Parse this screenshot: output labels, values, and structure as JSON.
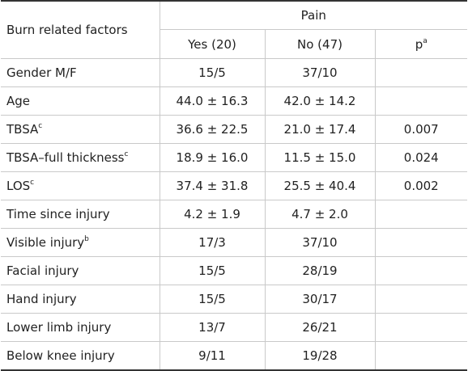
{
  "header": {
    "factor_label": "Burn related factors",
    "group_label": "Pain",
    "col_yes": "Yes (20)",
    "col_no": "No (47)",
    "col_p": "p",
    "col_p_sup": "a"
  },
  "rows": [
    {
      "label": "Gender M/F",
      "sup": "",
      "yes": "15/5",
      "no": "37/10",
      "p": ""
    },
    {
      "label": "Age",
      "sup": "",
      "yes": "44.0 ± 16.3",
      "no": "42.0 ± 14.2",
      "p": ""
    },
    {
      "label": "TBSA",
      "sup": "c",
      "yes": "36.6 ± 22.5",
      "no": "21.0 ± 17.4",
      "p": "0.007"
    },
    {
      "label": "TBSA–full thickness",
      "sup": "c",
      "yes": "18.9 ± 16.0",
      "no": "11.5 ± 15.0",
      "p": "0.024"
    },
    {
      "label": "LOS",
      "sup": "c",
      "yes": "37.4 ± 31.8",
      "no": "25.5 ± 40.4",
      "p": "0.002"
    },
    {
      "label": "Time since injury",
      "sup": "",
      "yes": "4.2 ± 1.9",
      "no": "4.7 ± 2.0",
      "p": ""
    },
    {
      "label": "Visible injury",
      "sup": "b",
      "yes": "17/3",
      "no": "37/10",
      "p": ""
    },
    {
      "label": "Facial injury",
      "sup": "",
      "yes": "15/5",
      "no": "28/19",
      "p": ""
    },
    {
      "label": "Hand injury",
      "sup": "",
      "yes": "15/5",
      "no": "30/17",
      "p": ""
    },
    {
      "label": "Lower limb injury",
      "sup": "",
      "yes": "13/7",
      "no": "26/21",
      "p": ""
    },
    {
      "label": "Below knee injury",
      "sup": "",
      "yes": "9/11",
      "no": "19/28",
      "p": ""
    }
  ]
}
